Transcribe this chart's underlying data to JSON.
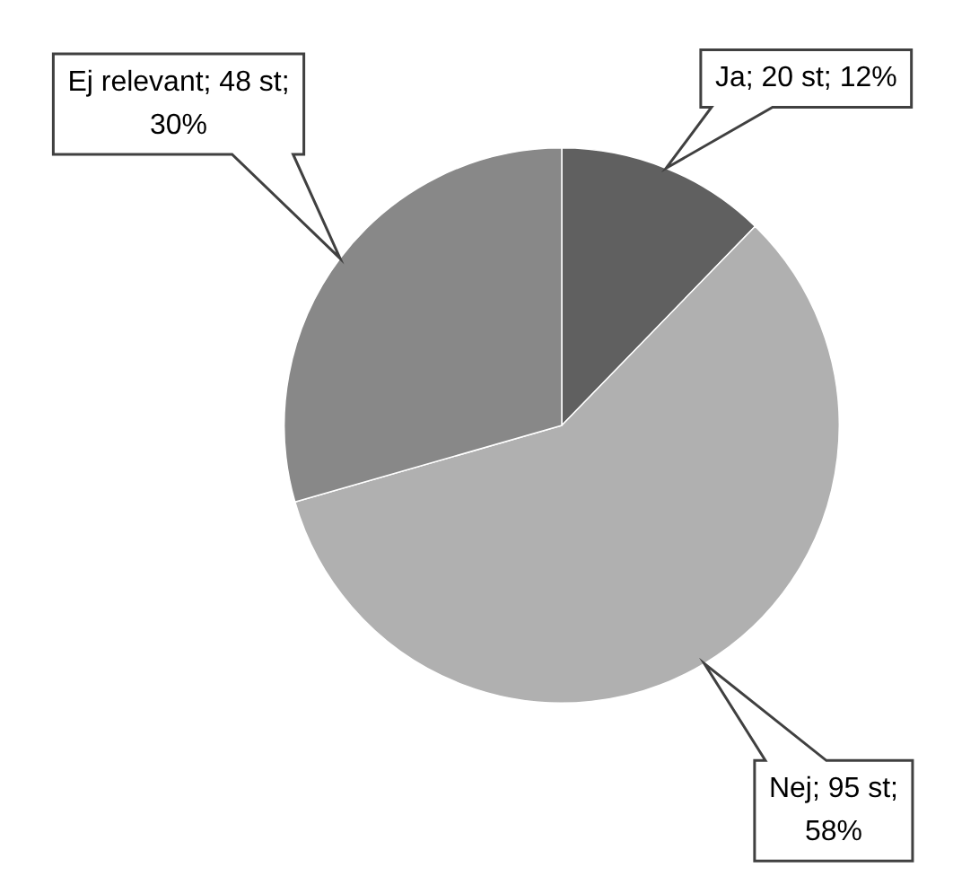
{
  "chart_data": {
    "type": "pie",
    "categories": [
      "Ja",
      "Nej",
      "Ej relevant"
    ],
    "values": [
      20,
      95,
      48
    ],
    "colors": [
      "#606060",
      "#b0b0b0",
      "#888888"
    ],
    "value_labels": [
      "20 st; 12%",
      "95 st; 58%",
      "48 st; 30%"
    ]
  }
}
